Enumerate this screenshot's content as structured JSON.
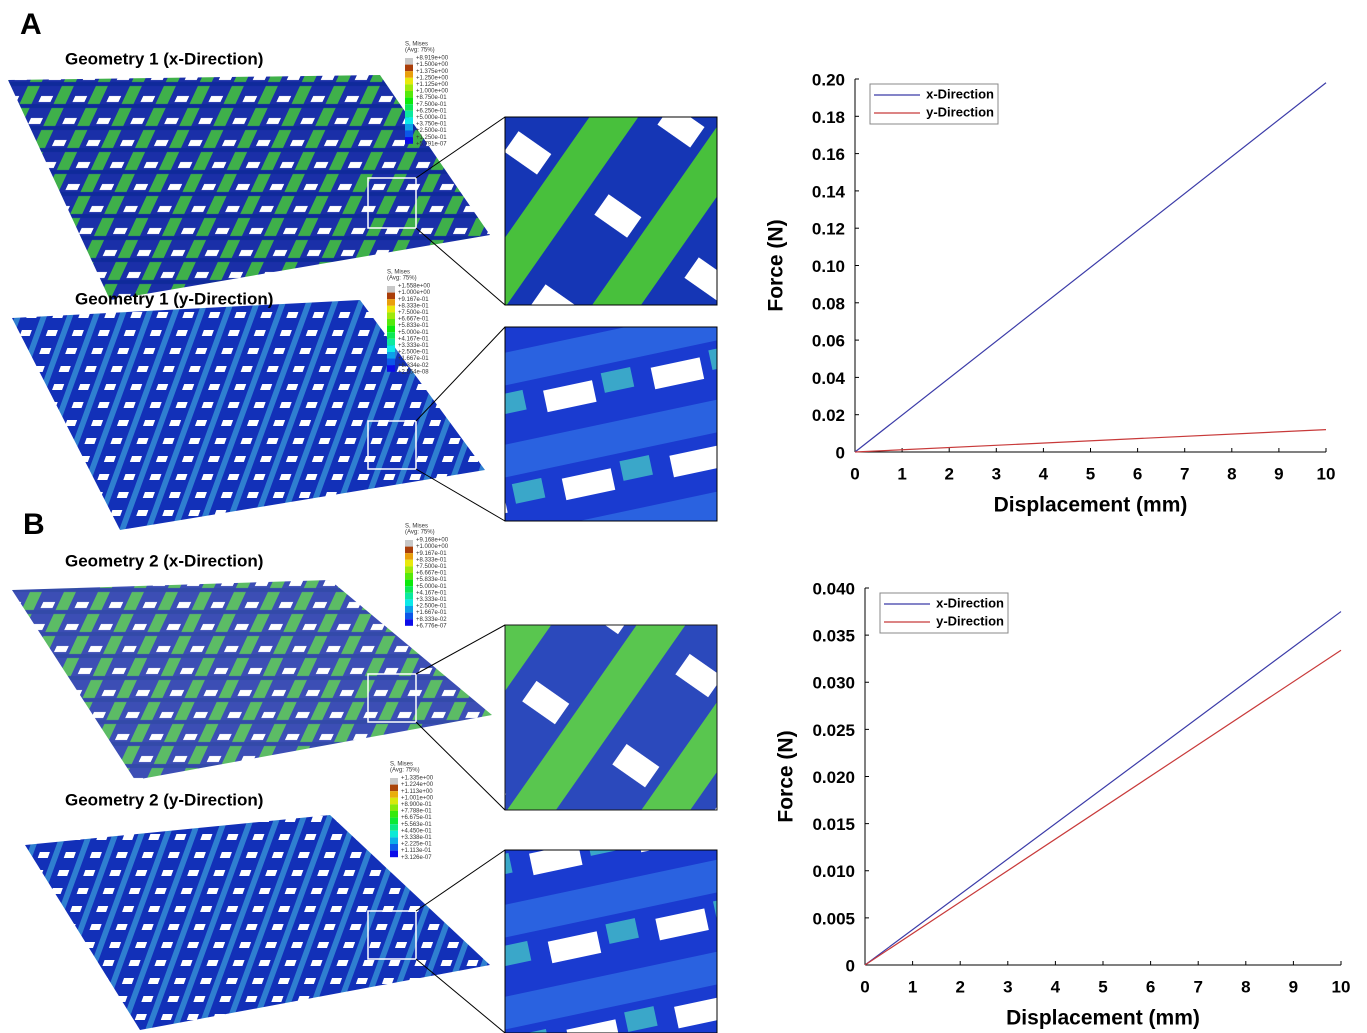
{
  "panel_labels": [
    "A",
    "B"
  ],
  "simulations": [
    {
      "title": "Geometry 1 (x-Direction)",
      "legend": {
        "title": "S, Mises",
        "subtitle": "(Avg: 75%)",
        "levels": [
          "+8.919e+00",
          "+1.500e+00",
          "+1.375e+00",
          "+1.250e+00",
          "+1.125e+00",
          "+1.000e+00",
          "+8.750e-01",
          "+7.500e-01",
          "+6.250e-01",
          "+5.000e-01",
          "+3.750e-01",
          "+2.500e-01",
          "+1.250e-01",
          "+5.791e-07"
        ]
      }
    },
    {
      "title": "Geometry 1 (y-Direction)",
      "legend": {
        "title": "S, Mises",
        "subtitle": "(Avg: 75%)",
        "levels": [
          "+1.558e+00",
          "+1.000e+00",
          "+9.167e-01",
          "+8.333e-01",
          "+7.500e-01",
          "+6.667e-01",
          "+5.833e-01",
          "+5.000e-01",
          "+4.167e-01",
          "+3.333e-01",
          "+2.500e-01",
          "+1.667e-01",
          "+8.334e-02",
          "+2.554e-08"
        ]
      }
    },
    {
      "title": "Geometry 2 (x-Direction)",
      "legend": {
        "title": "S, Mises",
        "subtitle": "(Avg: 75%)",
        "levels": [
          "+9.168e+00",
          "+1.000e+00",
          "+9.167e-01",
          "+8.333e-01",
          "+7.500e-01",
          "+6.667e-01",
          "+5.833e-01",
          "+5.000e-01",
          "+4.167e-01",
          "+3.333e-01",
          "+2.500e-01",
          "+1.667e-01",
          "+8.333e-02",
          "+6.776e-07"
        ]
      }
    },
    {
      "title": "Geometry 2 (y-Direction)",
      "legend": {
        "title": "S, Mises",
        "subtitle": "(Avg: 75%)",
        "levels": [
          "+1.335e+00",
          "+1.224e+00",
          "+1.113e+00",
          "+1.001e+00",
          "+8.900e-01",
          "+7.788e-01",
          "+6.675e-01",
          "+5.563e-01",
          "+4.450e-01",
          "+3.338e-01",
          "+2.225e-01",
          "+1.113e-01",
          "+3.126e-07"
        ]
      }
    }
  ],
  "chart_data": [
    {
      "type": "line",
      "x_label": "Displacement (mm)",
      "y_label": "Force (N)",
      "x": [
        0,
        10
      ],
      "series": [
        {
          "name": "x-Direction",
          "color": "#3b3ba8",
          "values": [
            0,
            0.198
          ]
        },
        {
          "name": "y-Direction",
          "color": "#c83a3a",
          "values": [
            0,
            0.012
          ]
        }
      ],
      "xlim": [
        0,
        10
      ],
      "xticks": [
        0,
        1,
        2,
        3,
        4,
        5,
        6,
        7,
        8,
        9,
        10
      ],
      "ylim": [
        0,
        0.2
      ],
      "yticks": [
        0,
        0.02,
        0.04,
        0.06,
        0.08,
        {
          "value": 0.1,
          "label": "0.10"
        },
        0.12,
        0.14,
        0.16,
        0.18,
        {
          "value": 0.2,
          "label": "0.20"
        }
      ],
      "legend_position": "upper-left"
    },
    {
      "type": "line",
      "x_label": "Displacement (mm)",
      "y_label": "Force (N)",
      "x": [
        0,
        10
      ],
      "series": [
        {
          "name": "x-Direction",
          "color": "#3b3ba8",
          "values": [
            0,
            0.0375
          ]
        },
        {
          "name": "y-Direction",
          "color": "#c83a3a",
          "values": [
            0,
            0.0334
          ]
        }
      ],
      "xlim": [
        0,
        10
      ],
      "xticks": [
        0,
        1,
        2,
        3,
        4,
        5,
        6,
        7,
        8,
        9,
        10
      ],
      "ylim": [
        0,
        0.04
      ],
      "yticks": [
        0,
        0.005,
        {
          "value": 0.01,
          "label": "0.010"
        },
        0.015,
        {
          "value": 0.02,
          "label": "0.020"
        },
        0.025,
        {
          "value": 0.03,
          "label": "0.030"
        },
        0.035,
        {
          "value": 0.04,
          "label": "0.040"
        }
      ],
      "legend_position": "upper-left"
    }
  ]
}
